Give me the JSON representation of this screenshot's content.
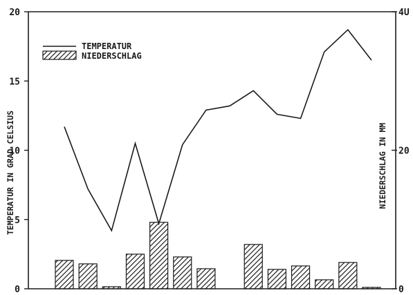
{
  "chart_data": {
    "type": "bar",
    "title": "",
    "xlabel": "",
    "ylabel": "TEMPERATUR IN GRAD CELSIUS",
    "y2label": "NIEDERSCHLAG IN MM",
    "ylim": [
      0,
      20
    ],
    "y2lim": [
      0,
      40
    ],
    "yticks": [
      "0",
      "5",
      "10",
      "15",
      "20"
    ],
    "y2ticks": [
      "0",
      "20",
      "4U"
    ],
    "legend_position": "top-left",
    "categories": [
      "",
      "",
      "",
      "",
      "",
      "",
      "",
      "",
      "",
      "",
      "",
      "",
      "",
      ""
    ],
    "series": [
      {
        "name": "TEMPERATUR",
        "type": "line",
        "axis": "left",
        "values": [
          11.7,
          7.2,
          4.2,
          10.5,
          4.7,
          10.4,
          12.9,
          13.2,
          14.3,
          12.6,
          12.3,
          17.1,
          18.7,
          16.5
        ]
      },
      {
        "name": "NIEDERSCHLAG",
        "type": "bar",
        "axis": "right",
        "values": [
          4.1,
          3.6,
          0.3,
          5.0,
          9.6,
          4.6,
          2.9,
          0,
          6.4,
          2.8,
          3.3,
          1.3,
          3.8,
          0.2
        ]
      }
    ],
    "colors": {
      "line": "#1a1a1a",
      "bar_stroke": "#1a1a1a",
      "bar_hatch": "#1a1a1a"
    }
  }
}
